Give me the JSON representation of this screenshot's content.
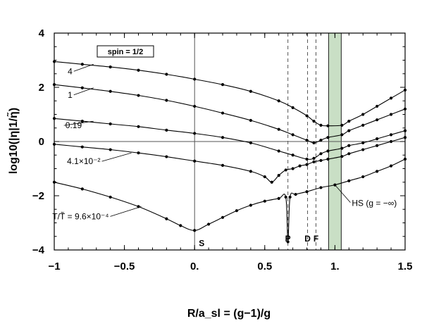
{
  "chart_data": {
    "type": "line",
    "title": "",
    "xlabel": "R/a_sl = (g−1)/g",
    "ylabel": "log10(|η|1/η̃)",
    "xlim": [
      -1,
      1.5
    ],
    "ylim": [
      -4,
      4
    ],
    "x_ticks": [
      -1,
      -0.5,
      0,
      0.5,
      1,
      1.5
    ],
    "x_tick_labels": [
      "−1",
      "−0.5",
      "0.",
      "0.5",
      "1.",
      "1.5"
    ],
    "y_ticks": [
      -4,
      -2,
      0,
      2,
      4
    ],
    "y_tick_labels": [
      "−4",
      "−2",
      "0",
      "2",
      "4"
    ],
    "grid": false,
    "legend_box": "spin = 1/2",
    "shaded_band": {
      "x_range": [
        0.955,
        1.045
      ],
      "color": "#c9dfc5"
    },
    "reference_lines": {
      "x_zero": 0,
      "y_zero": 0
    },
    "dashed_markers": [
      {
        "x": 0.665,
        "label": "P"
      },
      {
        "x": 0.805,
        "label": "D"
      },
      {
        "x": 0.865,
        "label": "F"
      }
    ],
    "point_markers": [
      {
        "x": 0,
        "y": -3.28,
        "label": "S"
      },
      {
        "x": 1.0,
        "y": -1.6,
        "label": "HS (g = −∞)"
      }
    ],
    "series": [
      {
        "label": "4",
        "x": [
          -1.0,
          -0.8,
          -0.6,
          -0.4,
          -0.2,
          0.0,
          0.2,
          0.4,
          0.6,
          0.7,
          0.8,
          0.85,
          0.9,
          0.95,
          1.05,
          1.1,
          1.2,
          1.3,
          1.4,
          1.5
        ],
        "y": [
          2.95,
          2.85,
          2.75,
          2.63,
          2.48,
          2.3,
          2.1,
          1.85,
          1.5,
          1.25,
          0.95,
          0.75,
          0.6,
          0.58,
          0.6,
          0.75,
          1.0,
          1.3,
          1.6,
          1.9
        ]
      },
      {
        "label": "1",
        "x": [
          -1.0,
          -0.8,
          -0.6,
          -0.4,
          -0.2,
          0.0,
          0.2,
          0.4,
          0.6,
          0.7,
          0.8,
          0.85,
          0.9,
          0.95,
          1.05,
          1.1,
          1.2,
          1.3,
          1.4,
          1.5
        ],
        "y": [
          2.1,
          1.98,
          1.85,
          1.7,
          1.52,
          1.3,
          1.05,
          0.78,
          0.45,
          0.25,
          0.05,
          -0.05,
          0.05,
          0.15,
          0.25,
          0.4,
          0.6,
          0.8,
          1.0,
          1.2
        ]
      },
      {
        "label": "0.19",
        "x": [
          -1.0,
          -0.8,
          -0.6,
          -0.4,
          -0.2,
          0.0,
          0.2,
          0.4,
          0.6,
          0.7,
          0.8,
          0.85,
          0.9,
          0.95,
          1.05,
          1.1,
          1.2,
          1.3,
          1.4,
          1.5
        ],
        "y": [
          0.85,
          0.75,
          0.65,
          0.55,
          0.42,
          0.3,
          0.15,
          -0.05,
          -0.35,
          -0.5,
          -0.65,
          -0.62,
          -0.45,
          -0.35,
          -0.25,
          -0.15,
          -0.05,
          0.1,
          0.25,
          0.4
        ]
      },
      {
        "label": "4.1×10⁻²",
        "x": [
          -1.0,
          -0.8,
          -0.6,
          -0.4,
          -0.2,
          0.0,
          0.2,
          0.4,
          0.5,
          0.55,
          0.6,
          0.65,
          0.7,
          0.75,
          0.8,
          0.85,
          0.9,
          0.95,
          1.05,
          1.1,
          1.2,
          1.3,
          1.4,
          1.5
        ],
        "y": [
          -0.1,
          -0.2,
          -0.3,
          -0.42,
          -0.56,
          -0.72,
          -0.88,
          -1.1,
          -1.3,
          -1.5,
          -1.25,
          -1.05,
          -1.0,
          -0.9,
          -0.85,
          -0.75,
          -0.7,
          -0.65,
          -0.55,
          -0.45,
          -0.3,
          -0.15,
          0.0,
          0.15
        ]
      },
      {
        "label": "T/T̃ = 9.6×10⁻⁴",
        "x": [
          -1.0,
          -0.8,
          -0.6,
          -0.4,
          -0.2,
          -0.1,
          0.0,
          0.1,
          0.2,
          0.3,
          0.4,
          0.5,
          0.6,
          0.65,
          0.665,
          0.68,
          0.72,
          0.8,
          0.9,
          1.0,
          1.1,
          1.2,
          1.3,
          1.4,
          1.5
        ],
        "y": [
          -1.5,
          -1.75,
          -2.05,
          -2.4,
          -2.85,
          -3.1,
          -3.28,
          -3.05,
          -2.8,
          -2.55,
          -2.35,
          -2.2,
          -2.1,
          -2.05,
          -3.7,
          -2.05,
          -1.95,
          -1.85,
          -1.7,
          -1.6,
          -1.45,
          -1.3,
          -1.1,
          -0.9,
          -0.65
        ]
      }
    ]
  }
}
